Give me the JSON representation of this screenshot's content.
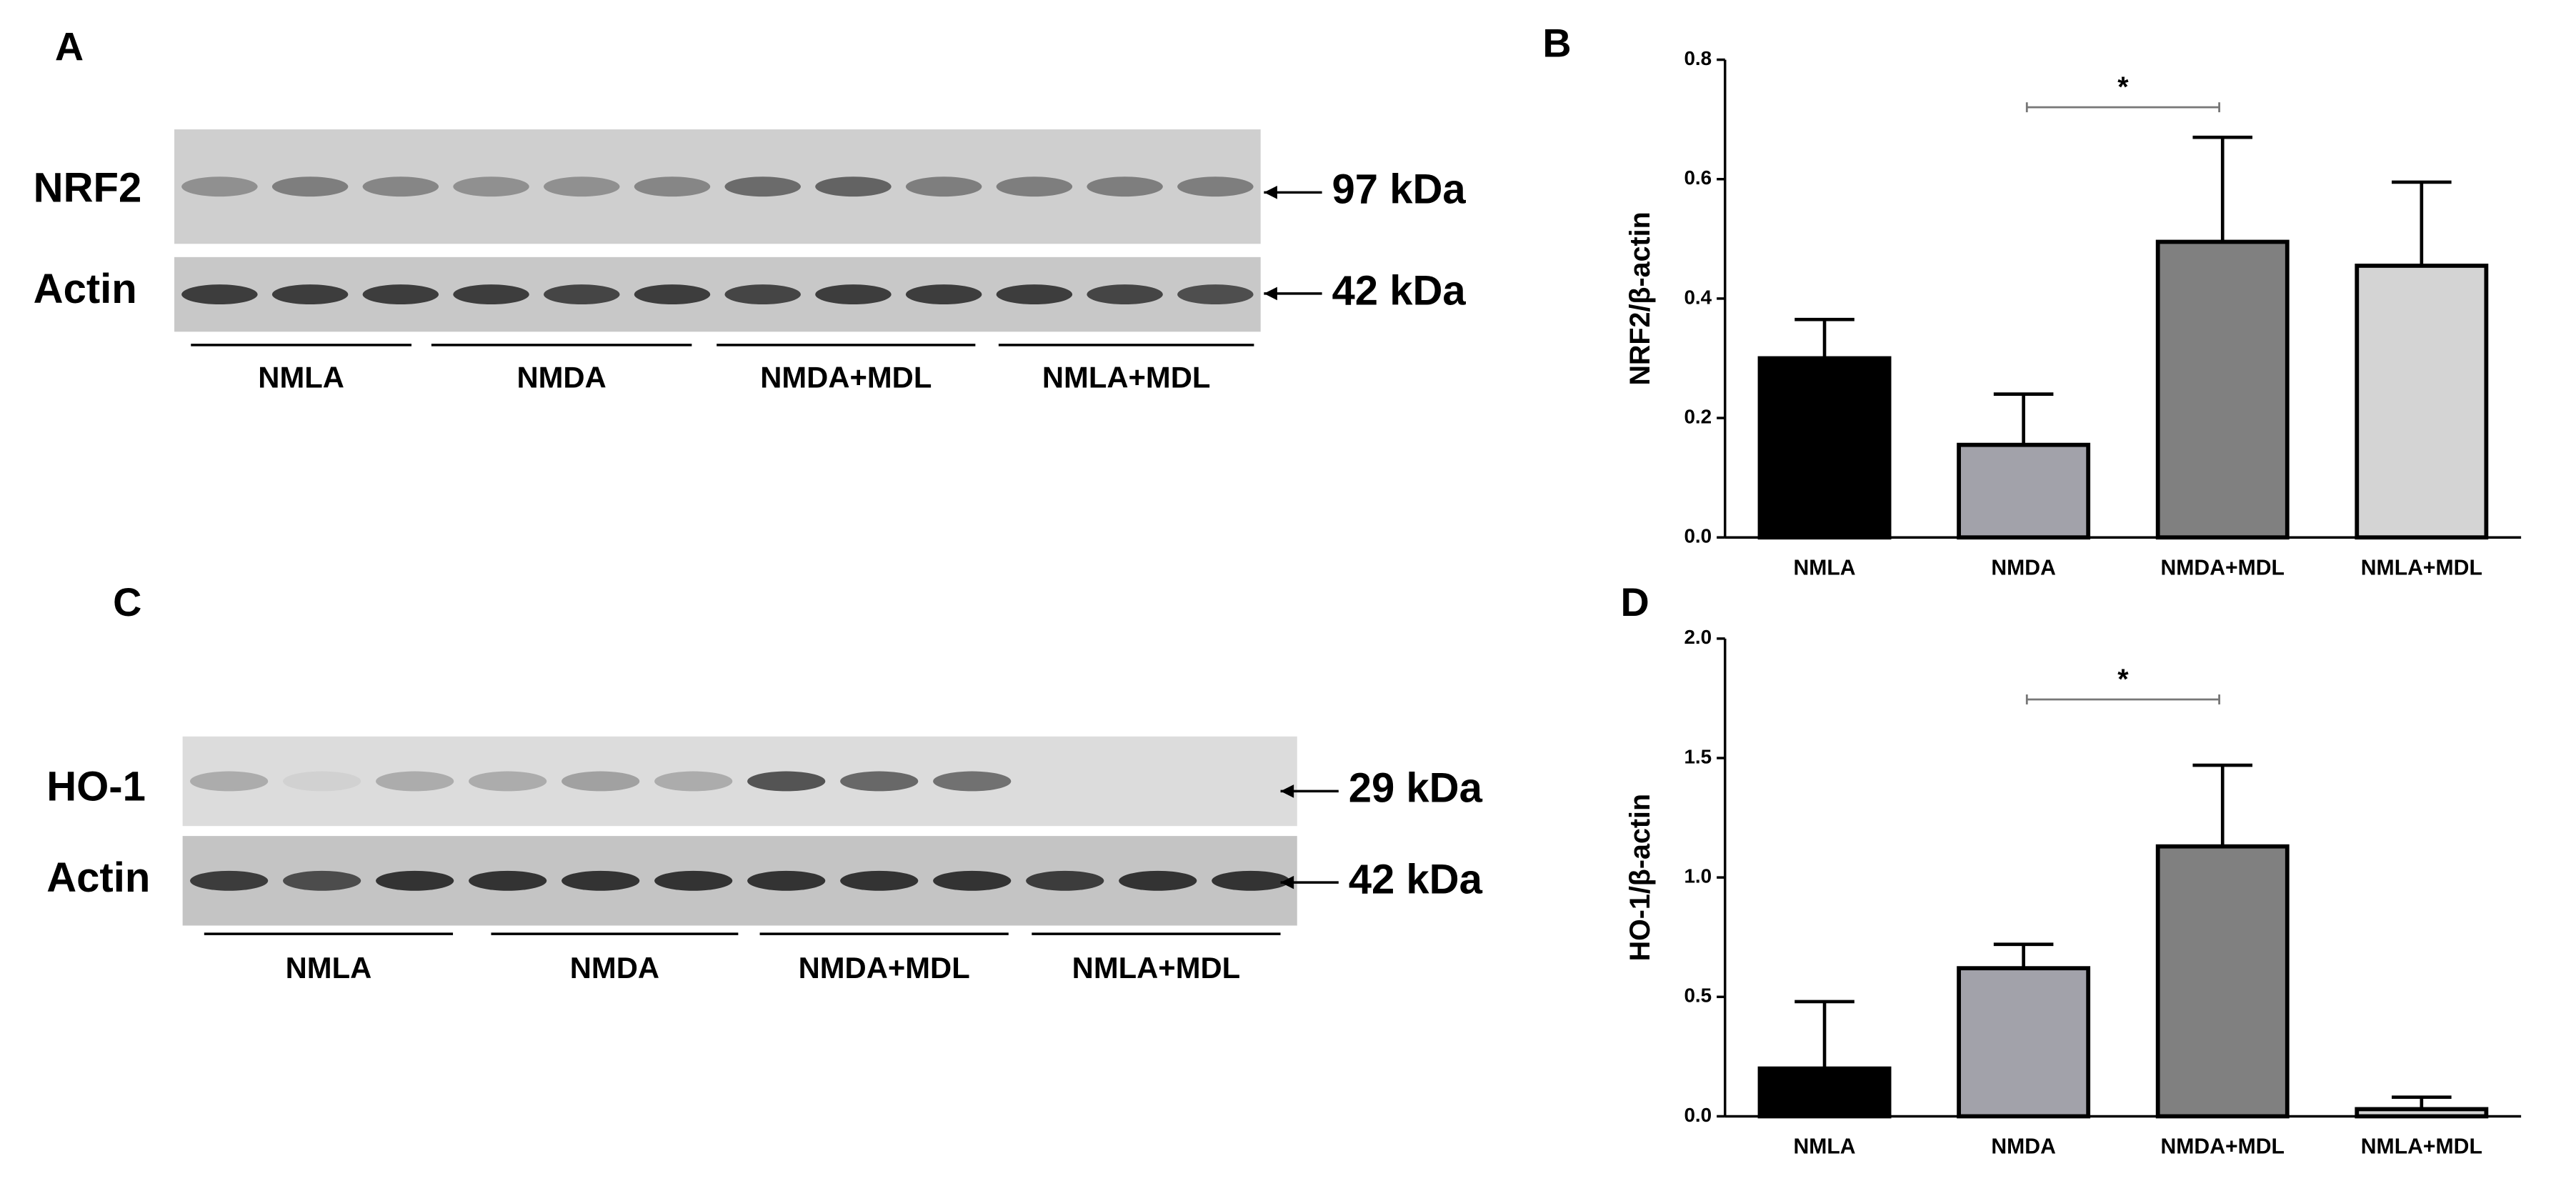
{
  "panel_labels": [
    "A",
    "B",
    "C",
    "D"
  ],
  "blots": [
    {
      "rows": [
        {
          "label": "NRF2",
          "size": "97 kDa"
        },
        {
          "label": "Actin",
          "size": "42 kDa"
        }
      ],
      "groups": [
        "NMLA",
        "NMDA",
        "NMDA+MDL",
        "NMLA+MDL"
      ]
    },
    {
      "rows": [
        {
          "label": "HO-1",
          "size": "29 kDa"
        },
        {
          "label": "Actin",
          "size": "42 kDa"
        }
      ],
      "groups": [
        "NMLA",
        "NMDA",
        "NMDA+MDL",
        "NMLA+MDL"
      ]
    }
  ],
  "chart_data": [
    {
      "type": "bar",
      "y_label": "NRF2/β-actin",
      "categories": [
        "NMLA",
        "NMDA",
        "NMDA+MDL",
        "NMLA+MDL"
      ],
      "values": [
        0.3,
        0.155,
        0.495,
        0.455
      ],
      "errors": [
        0.065,
        0.085,
        0.175,
        0.14
      ],
      "colors": [
        "#000000",
        "#a2a2aa",
        "#808080",
        "#d4d4d4"
      ],
      "ylim": [
        0,
        0.8
      ],
      "yticks": [
        {
          "value": 0,
          "label": "0.0"
        },
        {
          "value": 0.2,
          "label": "0.2"
        },
        {
          "value": 0.4,
          "label": "0.4"
        },
        {
          "value": 0.6,
          "label": "0.6"
        },
        {
          "value": 0.8,
          "label": "0.8"
        }
      ],
      "significance": "*"
    },
    {
      "type": "bar",
      "y_label": "HO-1/β-actin",
      "categories": [
        "NMLA",
        "NMDA",
        "NMDA+MDL",
        "NMLA+MDL"
      ],
      "values": [
        0.2,
        0.62,
        1.13,
        0.03
      ],
      "errors": [
        0.28,
        0.1,
        0.34,
        0.05
      ],
      "colors": [
        "#000000",
        "#a2a2aa",
        "#808080",
        "#d4d4d4"
      ],
      "ylim": [
        0,
        2.0
      ],
      "yticks": [
        {
          "value": 0,
          "label": "0.0"
        },
        {
          "value": 0.5,
          "label": "0.5"
        },
        {
          "value": 1.0,
          "label": "1.0"
        },
        {
          "value": 1.5,
          "label": "1.5"
        },
        {
          "value": 2.0,
          "label": "2.0"
        }
      ],
      "significance": "*"
    }
  ]
}
